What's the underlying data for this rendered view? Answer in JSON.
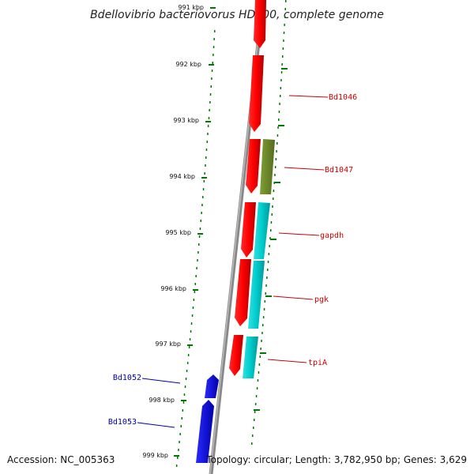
{
  "title": "Bdellovibrio bacteriovorus HD100, complete genome",
  "footer": {
    "accession": "Accession: NC_005363",
    "topology": "Topology: circular; Length: 3,782,950 bp; Genes: 3,629"
  },
  "kbp_labels": [
    "991 kbp",
    "992 kbp",
    "993 kbp",
    "994 kbp",
    "995 kbp",
    "996 kbp",
    "997 kbp",
    "998 kbp",
    "999 kbp"
  ],
  "gene_labels": {
    "bd1046": "Bd1046",
    "bd1047": "Bd1047",
    "gapdh": "gapdh",
    "pgk": "pgk",
    "tpia": "tpiA",
    "bd1052": "Bd1052",
    "bd1053": "Bd1053"
  },
  "colors": {
    "forward_red": "#ff0000",
    "olive": "#6b8e23",
    "cyan": "#00cccc",
    "reverse_blue": "#0000ee",
    "tick_green": "#007700",
    "backbone": "#888888"
  }
}
